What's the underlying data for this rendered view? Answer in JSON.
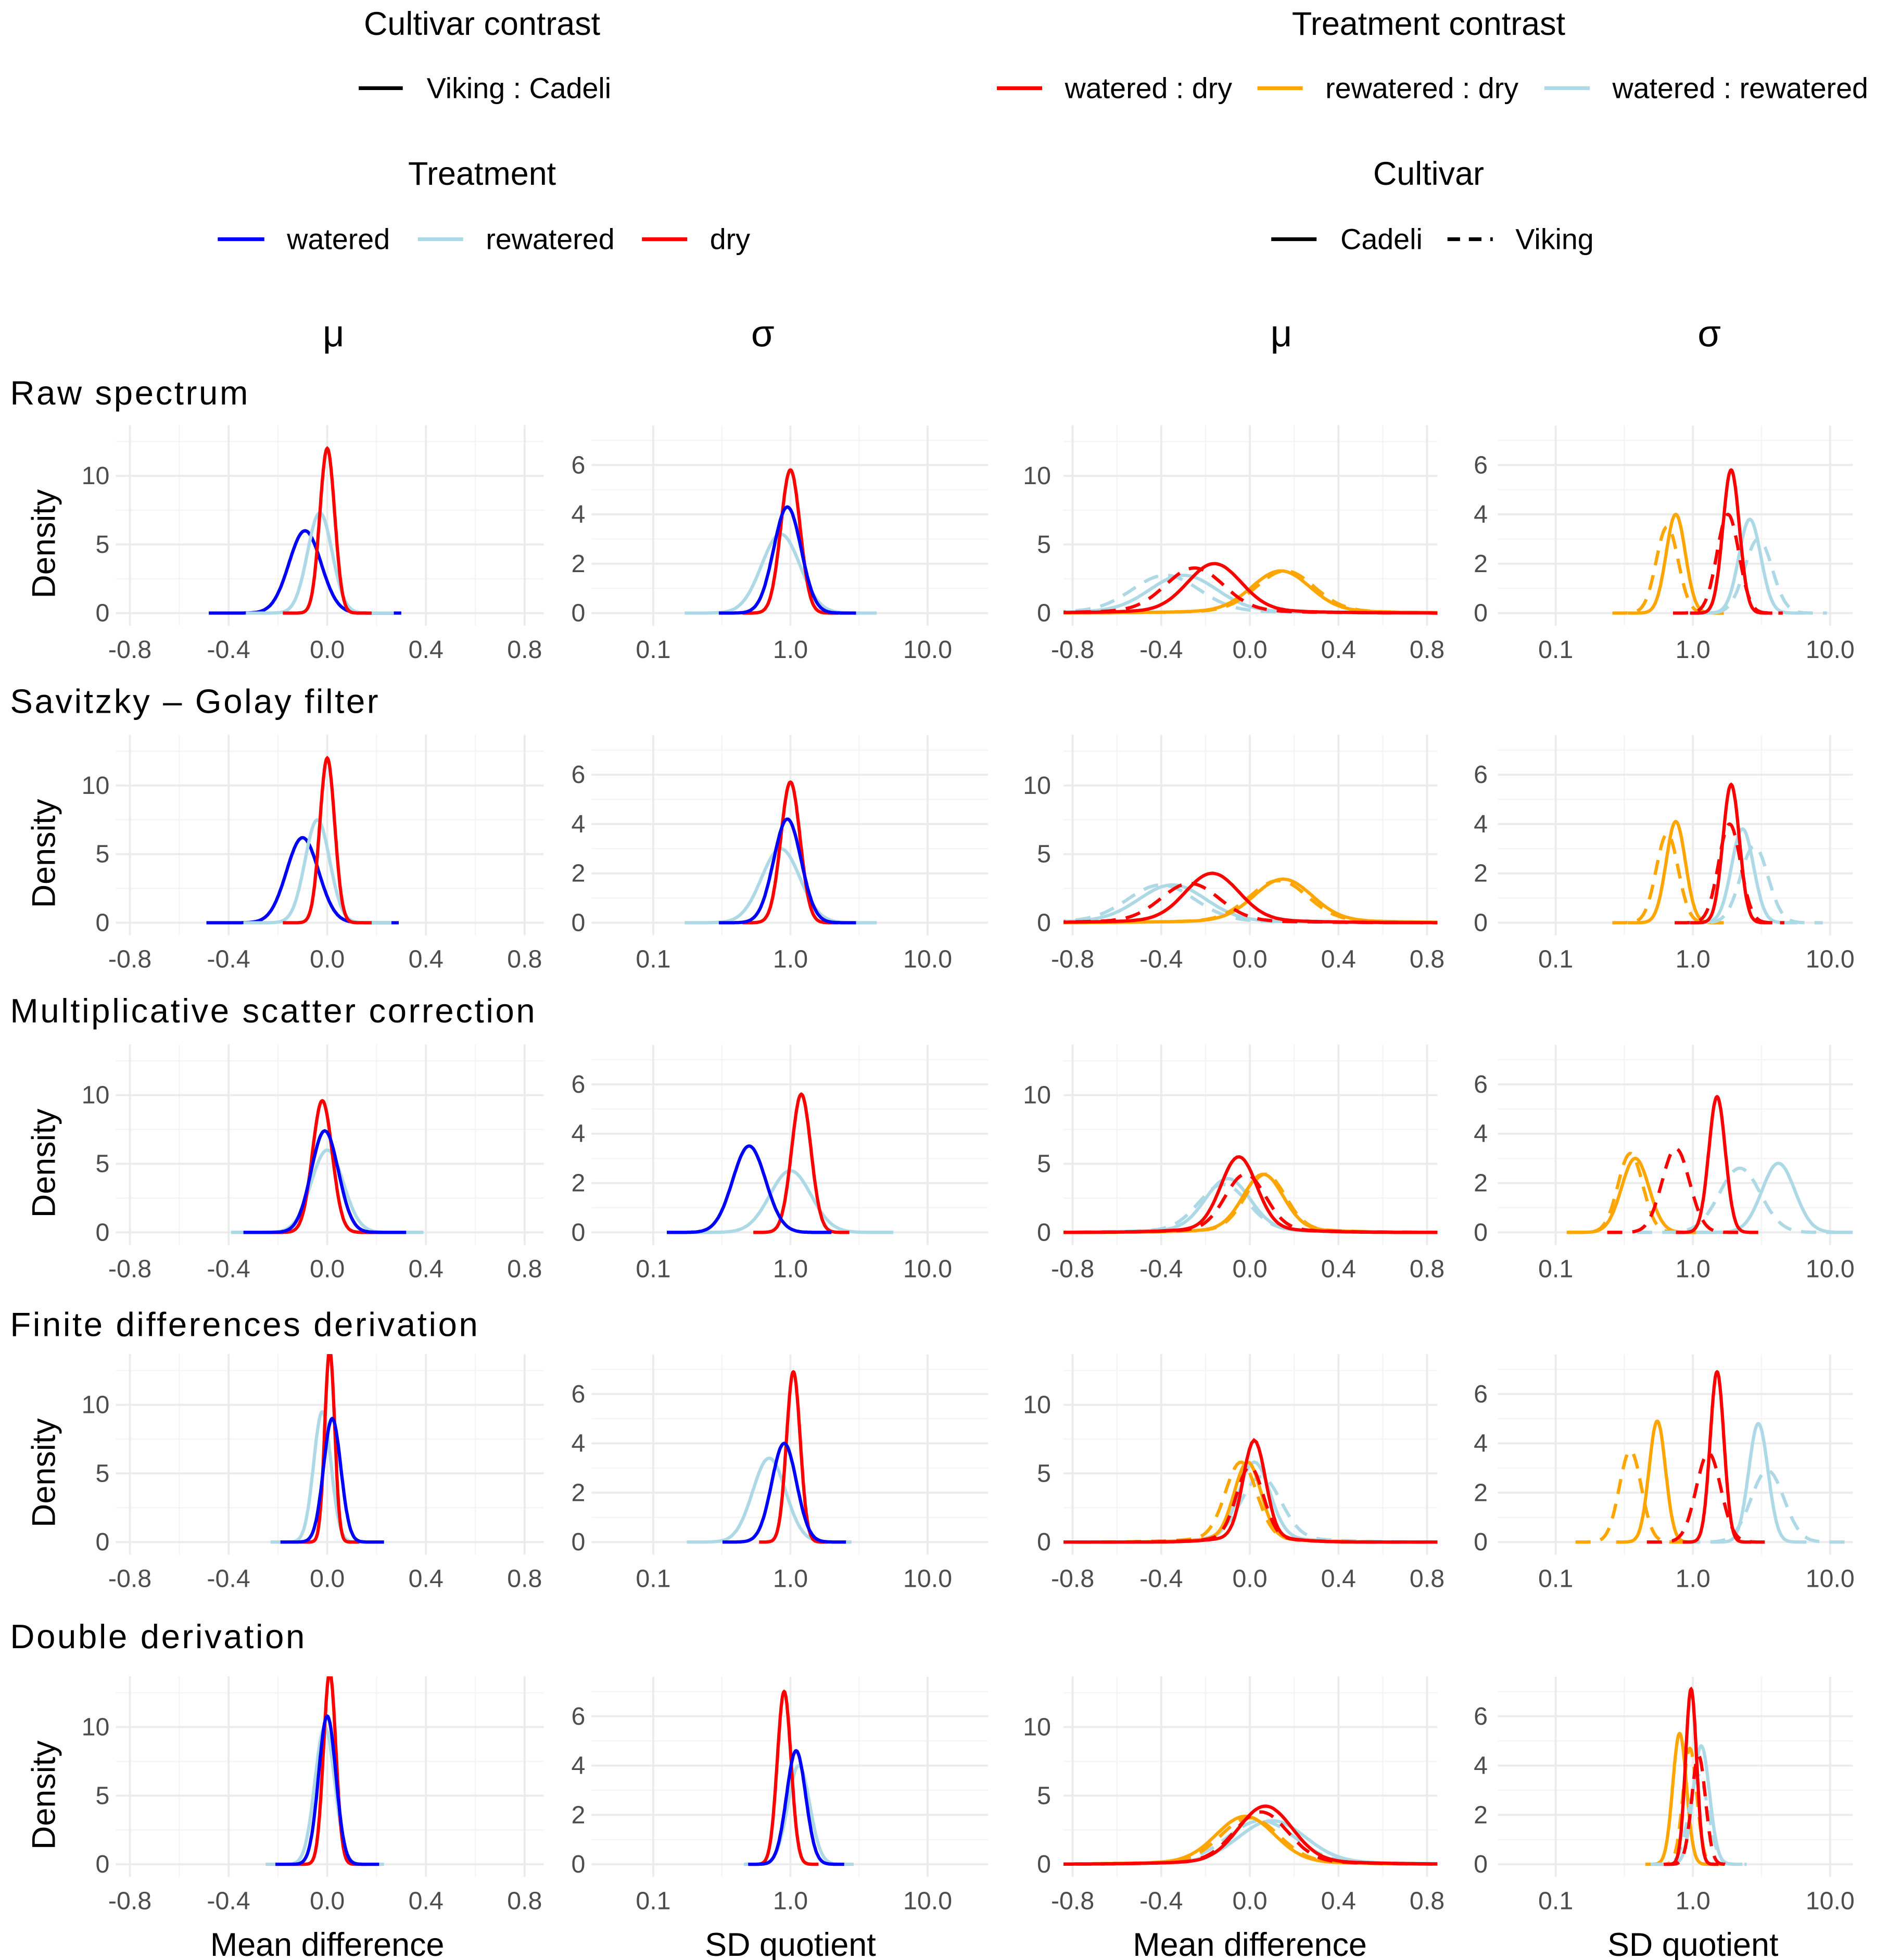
{
  "legends": {
    "cultivar_contrast": {
      "title": "Cultivar contrast",
      "items": [
        {
          "label": "Viking : Cadeli",
          "color": "#000000",
          "dash": false
        }
      ]
    },
    "treatment_contrast": {
      "title": "Treatment contrast",
      "items": [
        {
          "label": "watered : dry",
          "color": "#ff0000",
          "dash": false
        },
        {
          "label": "rewatered : dry",
          "color": "#ffa500",
          "dash": false
        },
        {
          "label": "watered : rewatered",
          "color": "#add8e6",
          "dash": false
        }
      ]
    },
    "treatment": {
      "title": "Treatment",
      "items": [
        {
          "label": "watered",
          "color": "#0000ff",
          "dash": false
        },
        {
          "label": "rewatered",
          "color": "#add8e6",
          "dash": false
        },
        {
          "label": "dry",
          "color": "#ff0000",
          "dash": false
        }
      ]
    },
    "cultivar": {
      "title": "Cultivar",
      "items": [
        {
          "label": "Cadeli",
          "color": "#000000",
          "dash": false
        },
        {
          "label": "Viking",
          "color": "#000000",
          "dash": true
        }
      ]
    }
  },
  "column_headers": [
    "μ",
    "σ",
    "μ",
    "σ"
  ],
  "row_titles": [
    "Raw spectrum",
    "Savitzky – Golay filter",
    "Multiplicative scatter correction",
    "Finite differences derivation",
    "Double derivation"
  ],
  "ylabel": "Density",
  "xlabels": [
    "Mean difference",
    "SD quotient",
    "Mean difference",
    "SD quotient"
  ],
  "chart_data": {
    "type": "line",
    "description_of_curves": "density curves approximated as Gaussians: mean (data units; for SD quotient panels center is a quotient on log10 scale, sd in log10 units), sd, peak density",
    "x_ticks_mean": [
      "-0.8",
      "-0.4",
      "0.0",
      "0.4",
      "0.8"
    ],
    "x_ticks_sd": [
      "0.1",
      "1.0",
      "10.0"
    ],
    "y_ticks_mean": [
      "0",
      "5",
      "10"
    ],
    "y_ticks_sd": [
      "0",
      "2",
      "4",
      "6"
    ],
    "ylim_mean": [
      0,
      13.7
    ],
    "ylim_sd": [
      0,
      7.6
    ],
    "xlim_mean": [
      -0.9,
      0.9
    ],
    "xscale_sd": "log10",
    "rows": [
      [
        [
          {
            "s": "watered",
            "c": "#0000ff",
            "d": false,
            "m": -0.09,
            "sd": 0.065,
            "p": 6.0
          },
          {
            "s": "rewatered",
            "c": "#add8e6",
            "d": false,
            "m": -0.03,
            "sd": 0.05,
            "p": 7.3
          },
          {
            "s": "dry",
            "c": "#ff0000",
            "d": false,
            "m": 0.0,
            "sd": 0.03,
            "p": 12.0
          }
        ],
        [
          {
            "s": "rewatered",
            "c": "#add8e6",
            "d": false,
            "m": 0.85,
            "sd": 0.14,
            "p": 3.2
          },
          {
            "s": "dry",
            "c": "#ff0000",
            "d": false,
            "m": 1.0,
            "sd": 0.07,
            "p": 5.8
          },
          {
            "s": "watered",
            "c": "#0000ff",
            "d": false,
            "m": 0.95,
            "sd": 0.1,
            "p": 4.3
          }
        ],
        [
          {
            "s": "watered : rewatered Cadeli",
            "c": "#add8e6",
            "d": false,
            "m": -0.3,
            "sd": 0.15,
            "p": 2.6
          },
          {
            "s": "watered : rewatered Viking",
            "c": "#add8e6",
            "d": true,
            "m": -0.38,
            "sd": 0.15,
            "p": 2.6
          },
          {
            "s": "rewatered : dry Cadeli",
            "c": "#ffa500",
            "d": false,
            "m": 0.14,
            "sd": 0.13,
            "p": 2.9
          },
          {
            "s": "rewatered : dry Viking",
            "c": "#ffa500",
            "d": true,
            "m": 0.16,
            "sd": 0.13,
            "p": 2.9
          },
          {
            "s": "watered : dry Cadeli",
            "c": "#ff0000",
            "d": false,
            "m": -0.16,
            "sd": 0.12,
            "p": 3.4
          },
          {
            "s": "watered : dry Viking",
            "c": "#ff0000",
            "d": true,
            "m": -0.25,
            "sd": 0.13,
            "p": 3.1
          }
        ],
        [
          {
            "s": "rewatered : dry Cadeli",
            "c": "#ffa500",
            "d": false,
            "m": 0.75,
            "sd": 0.07,
            "p": 4.0
          },
          {
            "s": "rewatered : dry Viking",
            "c": "#ffa500",
            "d": true,
            "m": 0.65,
            "sd": 0.08,
            "p": 3.5
          },
          {
            "s": "watered : rewatered Cadeli",
            "c": "#add8e6",
            "d": false,
            "m": 2.6,
            "sd": 0.08,
            "p": 3.8
          },
          {
            "s": "watered : rewatered Viking",
            "c": "#add8e6",
            "d": true,
            "m": 3.0,
            "sd": 0.1,
            "p": 3.0
          },
          {
            "s": "watered : dry Cadeli",
            "c": "#ff0000",
            "d": false,
            "m": 1.9,
            "sd": 0.06,
            "p": 5.8
          },
          {
            "s": "watered : dry Viking",
            "c": "#ff0000",
            "d": true,
            "m": 1.8,
            "sd": 0.08,
            "p": 4.0
          }
        ]
      ],
      [
        [
          {
            "s": "watered",
            "c": "#0000ff",
            "d": false,
            "m": -0.1,
            "sd": 0.065,
            "p": 6.2
          },
          {
            "s": "rewatered",
            "c": "#add8e6",
            "d": false,
            "m": -0.04,
            "sd": 0.05,
            "p": 7.5
          },
          {
            "s": "dry",
            "c": "#ff0000",
            "d": false,
            "m": 0.0,
            "sd": 0.03,
            "p": 12.0
          }
        ],
        [
          {
            "s": "rewatered",
            "c": "#add8e6",
            "d": false,
            "m": 0.85,
            "sd": 0.14,
            "p": 3.0
          },
          {
            "s": "dry",
            "c": "#ff0000",
            "d": false,
            "m": 1.0,
            "sd": 0.07,
            "p": 5.7
          },
          {
            "s": "watered",
            "c": "#0000ff",
            "d": false,
            "m": 0.95,
            "sd": 0.1,
            "p": 4.2
          }
        ],
        [
          {
            "s": "watered : rewatered Cadeli",
            "c": "#add8e6",
            "d": false,
            "m": -0.35,
            "sd": 0.15,
            "p": 2.6
          },
          {
            "s": "watered : rewatered Viking",
            "c": "#add8e6",
            "d": true,
            "m": -0.4,
            "sd": 0.15,
            "p": 2.6
          },
          {
            "s": "rewatered : dry Cadeli",
            "c": "#ffa500",
            "d": false,
            "m": 0.15,
            "sd": 0.13,
            "p": 3.0
          },
          {
            "s": "rewatered : dry Viking",
            "c": "#ffa500",
            "d": true,
            "m": 0.13,
            "sd": 0.13,
            "p": 2.9
          },
          {
            "s": "watered : dry Cadeli",
            "c": "#ff0000",
            "d": false,
            "m": -0.17,
            "sd": 0.12,
            "p": 3.4
          },
          {
            "s": "watered : dry Viking",
            "c": "#ff0000",
            "d": true,
            "m": -0.27,
            "sd": 0.13,
            "p": 2.7
          }
        ],
        [
          {
            "s": "rewatered : dry Cadeli",
            "c": "#ffa500",
            "d": false,
            "m": 0.75,
            "sd": 0.07,
            "p": 4.1
          },
          {
            "s": "rewatered : dry Viking",
            "c": "#ffa500",
            "d": true,
            "m": 0.65,
            "sd": 0.08,
            "p": 3.6
          },
          {
            "s": "watered : rewatered Cadeli",
            "c": "#add8e6",
            "d": false,
            "m": 2.3,
            "sd": 0.08,
            "p": 3.8
          },
          {
            "s": "watered : rewatered Viking",
            "c": "#add8e6",
            "d": true,
            "m": 2.8,
            "sd": 0.1,
            "p": 3.1
          },
          {
            "s": "watered : dry Cadeli",
            "c": "#ff0000",
            "d": false,
            "m": 1.9,
            "sd": 0.06,
            "p": 5.6
          },
          {
            "s": "watered : dry Viking",
            "c": "#ff0000",
            "d": true,
            "m": 1.85,
            "sd": 0.08,
            "p": 4.0
          }
        ]
      ],
      [
        [
          {
            "s": "rewatered",
            "c": "#add8e6",
            "d": false,
            "m": 0.0,
            "sd": 0.065,
            "p": 6.0
          },
          {
            "s": "dry",
            "c": "#ff0000",
            "d": false,
            "m": -0.02,
            "sd": 0.04,
            "p": 9.6
          },
          {
            "s": "watered",
            "c": "#0000ff",
            "d": false,
            "m": -0.01,
            "sd": 0.055,
            "p": 7.4
          }
        ],
        [
          {
            "s": "rewatered",
            "c": "#add8e6",
            "d": false,
            "m": 1.0,
            "sd": 0.15,
            "p": 2.5
          },
          {
            "s": "dry",
            "c": "#ff0000",
            "d": false,
            "m": 1.2,
            "sd": 0.07,
            "p": 5.6
          },
          {
            "s": "watered",
            "c": "#0000ff",
            "d": false,
            "m": 0.5,
            "sd": 0.12,
            "p": 3.5
          }
        ],
        [
          {
            "s": "watered : rewatered Cadeli",
            "c": "#add8e6",
            "d": false,
            "m": -0.1,
            "sd": 0.1,
            "p": 3.7
          },
          {
            "s": "watered : rewatered Viking",
            "c": "#add8e6",
            "d": true,
            "m": -0.12,
            "sd": 0.11,
            "p": 3.3
          },
          {
            "s": "rewatered : dry Cadeli",
            "c": "#ffa500",
            "d": false,
            "m": 0.06,
            "sd": 0.09,
            "p": 4.0
          },
          {
            "s": "rewatered : dry Viking",
            "c": "#ffa500",
            "d": true,
            "m": 0.07,
            "sd": 0.09,
            "p": 4.0
          },
          {
            "s": "watered : dry Cadeli",
            "c": "#ff0000",
            "d": false,
            "m": -0.05,
            "sd": 0.08,
            "p": 5.2
          },
          {
            "s": "watered : dry Viking",
            "c": "#ff0000",
            "d": true,
            "m": -0.02,
            "sd": 0.09,
            "p": 4.0
          }
        ],
        [
          {
            "s": "rewatered : dry Cadeli",
            "c": "#ffa500",
            "d": false,
            "m": 0.38,
            "sd": 0.1,
            "p": 3.0
          },
          {
            "s": "rewatered : dry Viking",
            "c": "#ffa500",
            "d": true,
            "m": 0.35,
            "sd": 0.09,
            "p": 3.2
          },
          {
            "s": "watered : rewatered Cadeli",
            "c": "#add8e6",
            "d": false,
            "m": 4.2,
            "sd": 0.12,
            "p": 2.8
          },
          {
            "s": "watered : rewatered Viking",
            "c": "#add8e6",
            "d": true,
            "m": 2.2,
            "sd": 0.15,
            "p": 2.6
          },
          {
            "s": "watered : dry Cadeli",
            "c": "#ff0000",
            "d": false,
            "m": 1.5,
            "sd": 0.06,
            "p": 5.5
          },
          {
            "s": "watered : dry Viking",
            "c": "#ff0000",
            "d": true,
            "m": 0.75,
            "sd": 0.1,
            "p": 3.4
          }
        ]
      ],
      [
        [
          {
            "s": "rewatered",
            "c": "#add8e6",
            "d": false,
            "m": -0.02,
            "sd": 0.035,
            "p": 9.5
          },
          {
            "s": "dry",
            "c": "#ff0000",
            "d": false,
            "m": 0.01,
            "sd": 0.02,
            "p": 14.0
          },
          {
            "s": "watered",
            "c": "#0000ff",
            "d": false,
            "m": 0.02,
            "sd": 0.035,
            "p": 9.0
          }
        ],
        [
          {
            "s": "rewatered",
            "c": "#add8e6",
            "d": false,
            "m": 0.7,
            "sd": 0.12,
            "p": 3.4
          },
          {
            "s": "dry",
            "c": "#ff0000",
            "d": false,
            "m": 1.05,
            "sd": 0.05,
            "p": 6.9
          },
          {
            "s": "watered",
            "c": "#0000ff",
            "d": false,
            "m": 0.9,
            "sd": 0.09,
            "p": 4.0
          }
        ],
        [
          {
            "s": "watered : rewatered Cadeli",
            "c": "#add8e6",
            "d": false,
            "m": 0.02,
            "sd": 0.07,
            "p": 5.5
          },
          {
            "s": "watered : rewatered Viking",
            "c": "#add8e6",
            "d": true,
            "m": 0.05,
            "sd": 0.09,
            "p": 4.5
          },
          {
            "s": "rewatered : dry Cadeli",
            "c": "#ffa500",
            "d": false,
            "m": -0.01,
            "sd": 0.06,
            "p": 5.5
          },
          {
            "s": "rewatered : dry Viking",
            "c": "#ffa500",
            "d": true,
            "m": -0.04,
            "sd": 0.07,
            "p": 5.5
          },
          {
            "s": "watered : dry Cadeli",
            "c": "#ff0000",
            "d": false,
            "m": 0.02,
            "sd": 0.05,
            "p": 7.0
          },
          {
            "s": "watered : dry Viking",
            "c": "#ff0000",
            "d": true,
            "m": 0.0,
            "sd": 0.06,
            "p": 5.2
          }
        ],
        [
          {
            "s": "rewatered : dry Cadeli",
            "c": "#ffa500",
            "d": false,
            "m": 0.55,
            "sd": 0.06,
            "p": 4.9
          },
          {
            "s": "rewatered : dry Viking",
            "c": "#ffa500",
            "d": true,
            "m": 0.35,
            "sd": 0.08,
            "p": 3.7
          },
          {
            "s": "watered : rewatered Cadeli",
            "c": "#add8e6",
            "d": false,
            "m": 3.0,
            "sd": 0.07,
            "p": 4.8
          },
          {
            "s": "watered : rewatered Viking",
            "c": "#add8e6",
            "d": true,
            "m": 3.5,
            "sd": 0.12,
            "p": 2.9
          },
          {
            "s": "watered : dry Cadeli",
            "c": "#ff0000",
            "d": false,
            "m": 1.5,
            "sd": 0.05,
            "p": 6.9
          },
          {
            "s": "watered : dry Viking",
            "c": "#ff0000",
            "d": true,
            "m": 1.3,
            "sd": 0.09,
            "p": 3.6
          }
        ]
      ],
      [
        [
          {
            "s": "rewatered",
            "c": "#add8e6",
            "d": false,
            "m": -0.01,
            "sd": 0.04,
            "p": 10.0
          },
          {
            "s": "dry",
            "c": "#ff0000",
            "d": false,
            "m": 0.01,
            "sd": 0.025,
            "p": 14.0
          },
          {
            "s": "watered",
            "c": "#0000ff",
            "d": false,
            "m": 0.0,
            "sd": 0.035,
            "p": 10.8
          }
        ],
        [
          {
            "s": "rewatered",
            "c": "#add8e6",
            "d": false,
            "m": 1.15,
            "sd": 0.08,
            "p": 4.0
          },
          {
            "s": "dry",
            "c": "#ff0000",
            "d": false,
            "m": 0.9,
            "sd": 0.05,
            "p": 7.0
          },
          {
            "s": "watered",
            "c": "#0000ff",
            "d": false,
            "m": 1.1,
            "sd": 0.07,
            "p": 4.6
          }
        ],
        [
          {
            "s": "watered : rewatered Cadeli",
            "c": "#add8e6",
            "d": false,
            "m": 0.1,
            "sd": 0.15,
            "p": 3.0
          },
          {
            "s": "watered : rewatered Viking",
            "c": "#add8e6",
            "d": true,
            "m": 0.05,
            "sd": 0.15,
            "p": 3.0
          },
          {
            "s": "rewatered : dry Cadeli",
            "c": "#ffa500",
            "d": false,
            "m": -0.02,
            "sd": 0.13,
            "p": 3.3
          },
          {
            "s": "rewatered : dry Viking",
            "c": "#ffa500",
            "d": true,
            "m": 0.0,
            "sd": 0.13,
            "p": 3.2
          },
          {
            "s": "watered : dry Cadeli",
            "c": "#ff0000",
            "d": false,
            "m": 0.07,
            "sd": 0.12,
            "p": 4.0
          },
          {
            "s": "watered : dry Viking",
            "c": "#ff0000",
            "d": true,
            "m": 0.05,
            "sd": 0.12,
            "p": 3.6
          }
        ],
        [
          {
            "s": "rewatered : dry Cadeli",
            "c": "#ffa500",
            "d": false,
            "m": 0.8,
            "sd": 0.05,
            "p": 5.3
          },
          {
            "s": "rewatered : dry Viking",
            "c": "#ffa500",
            "d": true,
            "m": 0.95,
            "sd": 0.05,
            "p": 4.7
          },
          {
            "s": "watered : rewatered Cadeli",
            "c": "#add8e6",
            "d": false,
            "m": 1.15,
            "sd": 0.06,
            "p": 4.8
          },
          {
            "s": "watered : rewatered Viking",
            "c": "#add8e6",
            "d": true,
            "m": 1.1,
            "sd": 0.07,
            "p": 3.6
          },
          {
            "s": "watered : dry Cadeli",
            "c": "#ff0000",
            "d": false,
            "m": 0.97,
            "sd": 0.04,
            "p": 7.1
          },
          {
            "s": "watered : dry Viking",
            "c": "#ff0000",
            "d": true,
            "m": 1.1,
            "sd": 0.05,
            "p": 4.4
          }
        ]
      ]
    ]
  }
}
